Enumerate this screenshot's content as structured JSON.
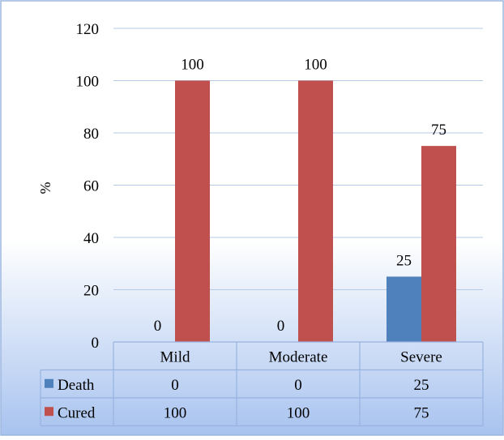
{
  "chart_data": {
    "type": "bar",
    "categories": [
      "Mild",
      "Moderate",
      "Severe"
    ],
    "series": [
      {
        "name": "Death",
        "values": [
          0,
          0,
          25
        ],
        "color": "#4F81BD"
      },
      {
        "name": "Cured",
        "values": [
          100,
          100,
          75
        ],
        "color": "#C0504D"
      }
    ],
    "ylabel": "%",
    "ylim": [
      0,
      120
    ],
    "yticks": [
      0,
      20,
      40,
      60,
      80,
      100,
      120
    ],
    "grid": true,
    "legend": "data-table",
    "data_labels": true,
    "colors": {
      "background_top": "#FFFFFF",
      "background_bottom": "#A8C3EF",
      "border": "#9BB5E0",
      "gridline": "#B5C8E6",
      "table_line": "#98B3E0"
    }
  }
}
